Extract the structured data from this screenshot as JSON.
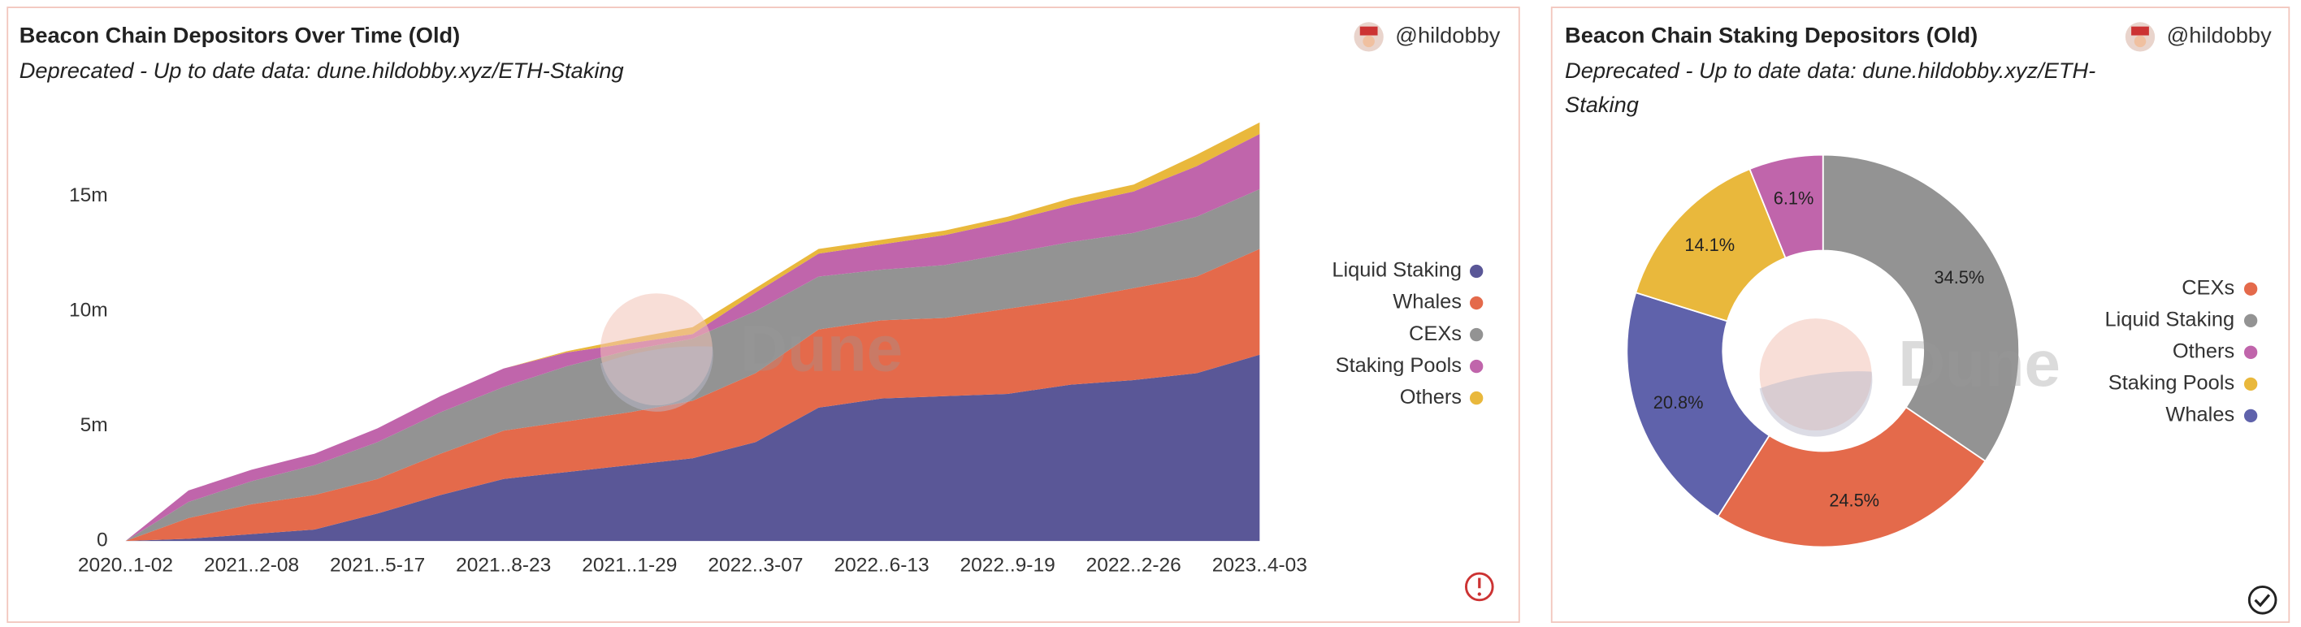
{
  "chart_data": [
    {
      "type": "stacked-area",
      "title": "Beacon Chain Depositors Over Time (Old)",
      "subtitle": "Deprecated - Up to date data: dune.hildobby.xyz/ETH-Staking",
      "author": "@hildobby",
      "watermark": "Dune",
      "categories": [
        "2020..1-02",
        null,
        "2021..2-08",
        null,
        "2021..5-17",
        null,
        "2021..8-23",
        null,
        "2021..1-29",
        null,
        "2022..3-07",
        null,
        "2022..6-13",
        null,
        "2022..9-19",
        null,
        "2022..2-26",
        null,
        "2023..4-03"
      ],
      "series": [
        {
          "name": "Liquid Staking",
          "color": "#5a5797",
          "values": [
            0,
            100000,
            300000,
            500000,
            1200000,
            2000000,
            2700000,
            3000000,
            3300000,
            3600000,
            4300000,
            5800000,
            6200000,
            6300000,
            6400000,
            6800000,
            7000000,
            7300000,
            8100000
          ]
        },
        {
          "name": "Whales",
          "color": "#e46a4b",
          "values": [
            0,
            900000,
            1300000,
            1500000,
            1500000,
            1800000,
            2100000,
            2200000,
            2300000,
            2500000,
            3000000,
            3400000,
            3400000,
            3400000,
            3700000,
            3700000,
            4000000,
            4200000,
            4600000
          ]
        },
        {
          "name": "CEXs",
          "color": "#939393",
          "values": [
            0,
            700000,
            1000000,
            1300000,
            1600000,
            1800000,
            1900000,
            2400000,
            2700000,
            2700000,
            2700000,
            2300000,
            2200000,
            2300000,
            2400000,
            2500000,
            2400000,
            2600000,
            2600000
          ]
        },
        {
          "name": "Staking Pools",
          "color": "#c065ab",
          "values": [
            0,
            500000,
            500000,
            500000,
            600000,
            700000,
            800000,
            600000,
            300000,
            200000,
            800000,
            1000000,
            1100000,
            1300000,
            1400000,
            1600000,
            1800000,
            2200000,
            2400000
          ]
        },
        {
          "name": "Others",
          "color": "#e9b83c",
          "values": [
            0,
            0,
            0,
            0,
            0,
            0,
            0,
            50000,
            200000,
            300000,
            200000,
            200000,
            200000,
            200000,
            200000,
            300000,
            300000,
            500000,
            500000
          ]
        }
      ],
      "ylim": [
        0,
        18500000
      ],
      "yticks": [
        0,
        {
          "value": 5000000,
          "label": "5m"
        },
        {
          "value": 10000000,
          "label": "10m"
        },
        {
          "value": 15000000,
          "label": "15m"
        }
      ],
      "grid": false,
      "legend": "right"
    },
    {
      "type": "donut",
      "title": "Beacon Chain Staking Depositors (Old)",
      "subtitle": [
        "Deprecated - Up to date data: dune.hildobby.xyz/ETH-",
        "Staking"
      ],
      "author": "@hildobby",
      "watermark": "Dune",
      "categories": [
        "Liquid Staking",
        "CEXs",
        "Whales",
        "Staking Pools",
        "Others"
      ],
      "values": [
        34.5,
        24.5,
        20.8,
        14.1,
        6.1
      ],
      "value_labels": [
        "34.5%",
        "24.5%",
        "20.8%",
        "14.1%",
        "6.1%"
      ],
      "colors": [
        "#939393",
        "#e46a4b",
        "#5f62ab",
        "#e9b83c",
        "#c065ab"
      ],
      "legend": "right"
    }
  ]
}
